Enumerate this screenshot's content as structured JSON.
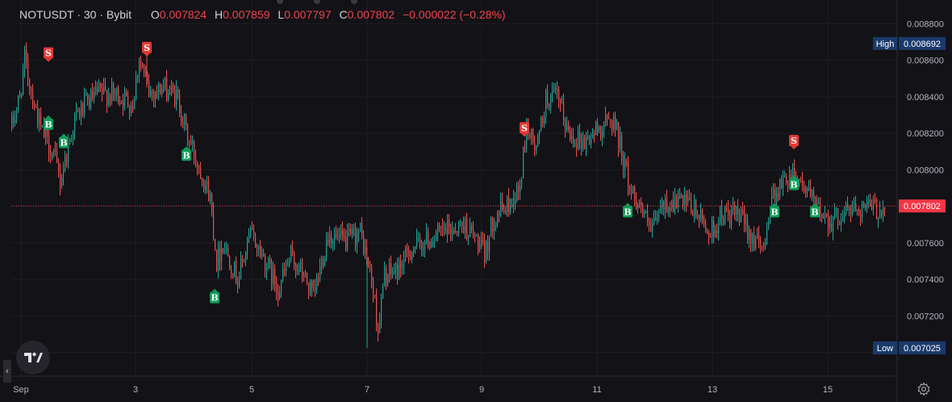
{
  "header": {
    "symbol": "NOTUSDT",
    "sep1": "·",
    "interval": "30",
    "sep2": "·",
    "exchange": "Bybit",
    "open_label": "O",
    "open": "0.007824",
    "high_label": "H",
    "high": "0.007859",
    "low_label": "L",
    "low": "0.007797",
    "close_label": "C",
    "close": "0.007802",
    "change": "−0.000022 (−0.28%)"
  },
  "colors": {
    "background": "#131217",
    "up": "#26a69a",
    "down": "#ef5350",
    "grid": "#1f1e25",
    "axis_text": "#b2b5be",
    "high_low_badge": "#1a3a6b",
    "last_price_badge": "#f23645",
    "buy_marker": "#0f9d58",
    "sell_marker": "#e53935"
  },
  "icons": [
    "tradingview-logo-icon",
    "collapse-chevron-icon",
    "settings-gear-icon"
  ],
  "chart_data": {
    "type": "candlestick",
    "price_axis_ticks": [
      "0.008800",
      "0.008600",
      "0.008400",
      "0.008200",
      "0.008000",
      "0.007600",
      "0.007400",
      "0.007200"
    ],
    "ylim": [
      0.00687,
      0.00893
    ],
    "time_axis_labels": [
      "Sep",
      "3",
      "5",
      "7",
      "9",
      "11",
      "13",
      "15"
    ],
    "high_label": "High",
    "high_value": "0.008692",
    "low_label": "Low",
    "low_value": "0.007025",
    "last_price": "0.007802",
    "trend_anchors": [
      [
        0,
        0.00824
      ],
      [
        10,
        0.0084
      ],
      [
        16,
        0.0086
      ],
      [
        26,
        0.0084
      ],
      [
        36,
        0.00822
      ],
      [
        52,
        0.00808
      ],
      [
        60,
        0.00794
      ],
      [
        78,
        0.00828
      ],
      [
        92,
        0.00836
      ],
      [
        108,
        0.00842
      ],
      [
        130,
        0.00841
      ],
      [
        150,
        0.00836
      ],
      [
        158,
        0.00862
      ],
      [
        170,
        0.00842
      ],
      [
        188,
        0.00845
      ],
      [
        205,
        0.0084
      ],
      [
        218,
        0.00818
      ],
      [
        234,
        0.008
      ],
      [
        246,
        0.00785
      ],
      [
        254,
        0.0075
      ],
      [
        262,
        0.0076
      ],
      [
        280,
        0.0074
      ],
      [
        296,
        0.00765
      ],
      [
        312,
        0.00752
      ],
      [
        330,
        0.00735
      ],
      [
        346,
        0.00752
      ],
      [
        362,
        0.00742
      ],
      [
        374,
        0.0073
      ],
      [
        392,
        0.00765
      ],
      [
        412,
        0.0076
      ],
      [
        432,
        0.00766
      ],
      [
        446,
        0.0074
      ],
      [
        454,
        0.00712
      ],
      [
        462,
        0.00742
      ],
      [
        478,
        0.00745
      ],
      [
        496,
        0.00757
      ],
      [
        518,
        0.00762
      ],
      [
        540,
        0.00767
      ],
      [
        560,
        0.0077
      ],
      [
        574,
        0.00763
      ],
      [
        586,
        0.00753
      ],
      [
        598,
        0.00775
      ],
      [
        614,
        0.0078
      ],
      [
        630,
        0.0079
      ],
      [
        638,
        0.00825
      ],
      [
        650,
        0.0081
      ],
      [
        662,
        0.00838
      ],
      [
        676,
        0.0084
      ],
      [
        690,
        0.0082
      ],
      [
        710,
        0.00815
      ],
      [
        726,
        0.00822
      ],
      [
        746,
        0.00828
      ],
      [
        756,
        0.0081
      ],
      [
        766,
        0.0079
      ],
      [
        780,
        0.0078
      ],
      [
        792,
        0.00765
      ],
      [
        806,
        0.0078
      ],
      [
        826,
        0.00783
      ],
      [
        846,
        0.00778
      ],
      [
        866,
        0.00765
      ],
      [
        880,
        0.00775
      ],
      [
        900,
        0.00775
      ],
      [
        916,
        0.00765
      ],
      [
        930,
        0.00755
      ],
      [
        942,
        0.00785
      ],
      [
        954,
        0.00792
      ],
      [
        968,
        0.008
      ],
      [
        984,
        0.0079
      ],
      [
        996,
        0.0078
      ],
      [
        1016,
        0.00772
      ],
      [
        1036,
        0.00778
      ],
      [
        1056,
        0.0078
      ],
      [
        1076,
        0.00778
      ],
      [
        1094,
        0.00785
      ]
    ],
    "signals": [
      {
        "type": "S",
        "label": "S",
        "t": 46,
        "price": 0.00864
      },
      {
        "type": "B",
        "label": "B",
        "t": 46,
        "price": 0.00825
      },
      {
        "type": "B",
        "label": "B",
        "t": 65,
        "price": 0.00815
      },
      {
        "type": "S",
        "label": "S",
        "t": 168,
        "price": 0.00867
      },
      {
        "type": "B",
        "label": "B",
        "t": 217,
        "price": 0.00808
      },
      {
        "type": "B",
        "label": "B",
        "t": 252,
        "price": 0.0073
      },
      {
        "type": "S",
        "label": "S",
        "t": 636,
        "price": 0.00823
      },
      {
        "type": "B",
        "label": "B",
        "t": 764,
        "price": 0.00777
      },
      {
        "type": "B",
        "label": "B",
        "t": 946,
        "price": 0.00777
      },
      {
        "type": "S",
        "label": "S",
        "t": 970,
        "price": 0.00816
      },
      {
        "type": "B",
        "label": "B",
        "t": 970,
        "price": 0.00792
      },
      {
        "type": "B",
        "label": "B",
        "t": 996,
        "price": 0.00777
      }
    ]
  }
}
